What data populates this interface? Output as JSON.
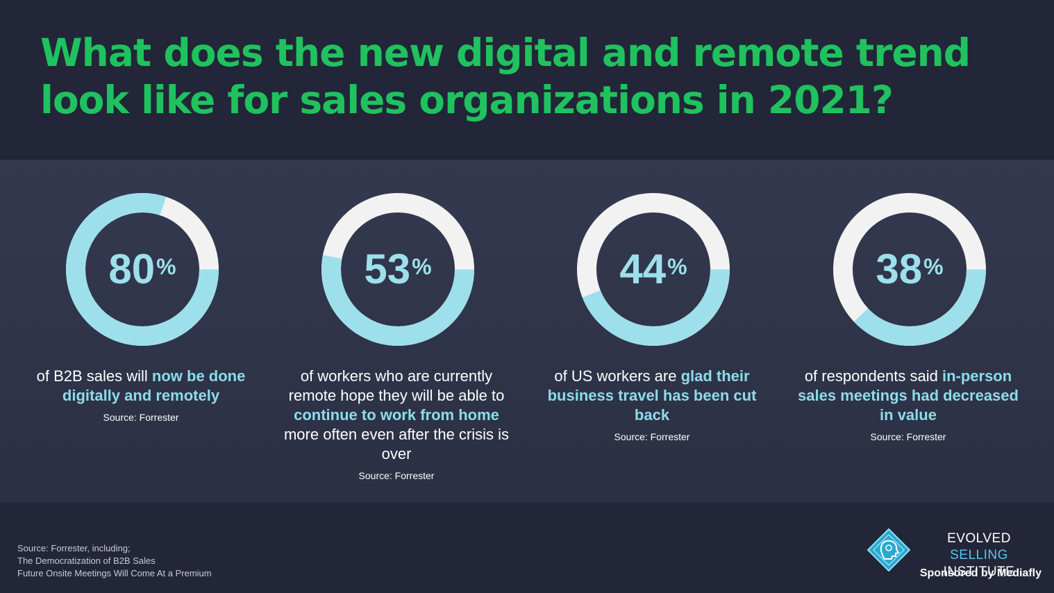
{
  "title": "What does the new digital and remote trend look like for sales organizations in 2021?",
  "colors": {
    "title_green": "#1fc25e",
    "ring_fill": "#9de0ec",
    "ring_track": "#f2f2f2",
    "highlight": "#8ddcea",
    "background": "#222638"
  },
  "stats": [
    {
      "value": 80,
      "number": "80",
      "unit": "%",
      "text_before": "of B2B sales will ",
      "highlight": "now be done digitally and remotely",
      "text_after": "",
      "source": "Source: Forrester"
    },
    {
      "value": 53,
      "number": "53",
      "unit": "%",
      "text_before": "of workers who are currently remote hope they will be able to ",
      "highlight": "continue to work from home",
      "text_after": " more often even after the crisis is over",
      "source": "Source: Forrester"
    },
    {
      "value": 44,
      "number": "44",
      "unit": "%",
      "text_before": "of US workers are ",
      "highlight": "glad their business travel has been cut back",
      "text_after": "",
      "source": "Source: Forrester"
    },
    {
      "value": 38,
      "number": "38",
      "unit": "%",
      "text_before": "of respondents said ",
      "highlight": "in-person sales meetings had decreased in value",
      "text_after": "",
      "source": "Source: Forrester"
    }
  ],
  "footnote": {
    "line1": "Source: Forrester, including;",
    "line2": "The Democratization of B2B Sales",
    "line3": "Future Onsite Meetings Will Come At a Premium"
  },
  "brand": {
    "name_part1": "EVOLVED ",
    "name_part2": "SELLING",
    "name_line2": "INSTITUTE",
    "sponsor": "Sponsored by Mediafly",
    "icon": "brain-head-icon"
  }
}
